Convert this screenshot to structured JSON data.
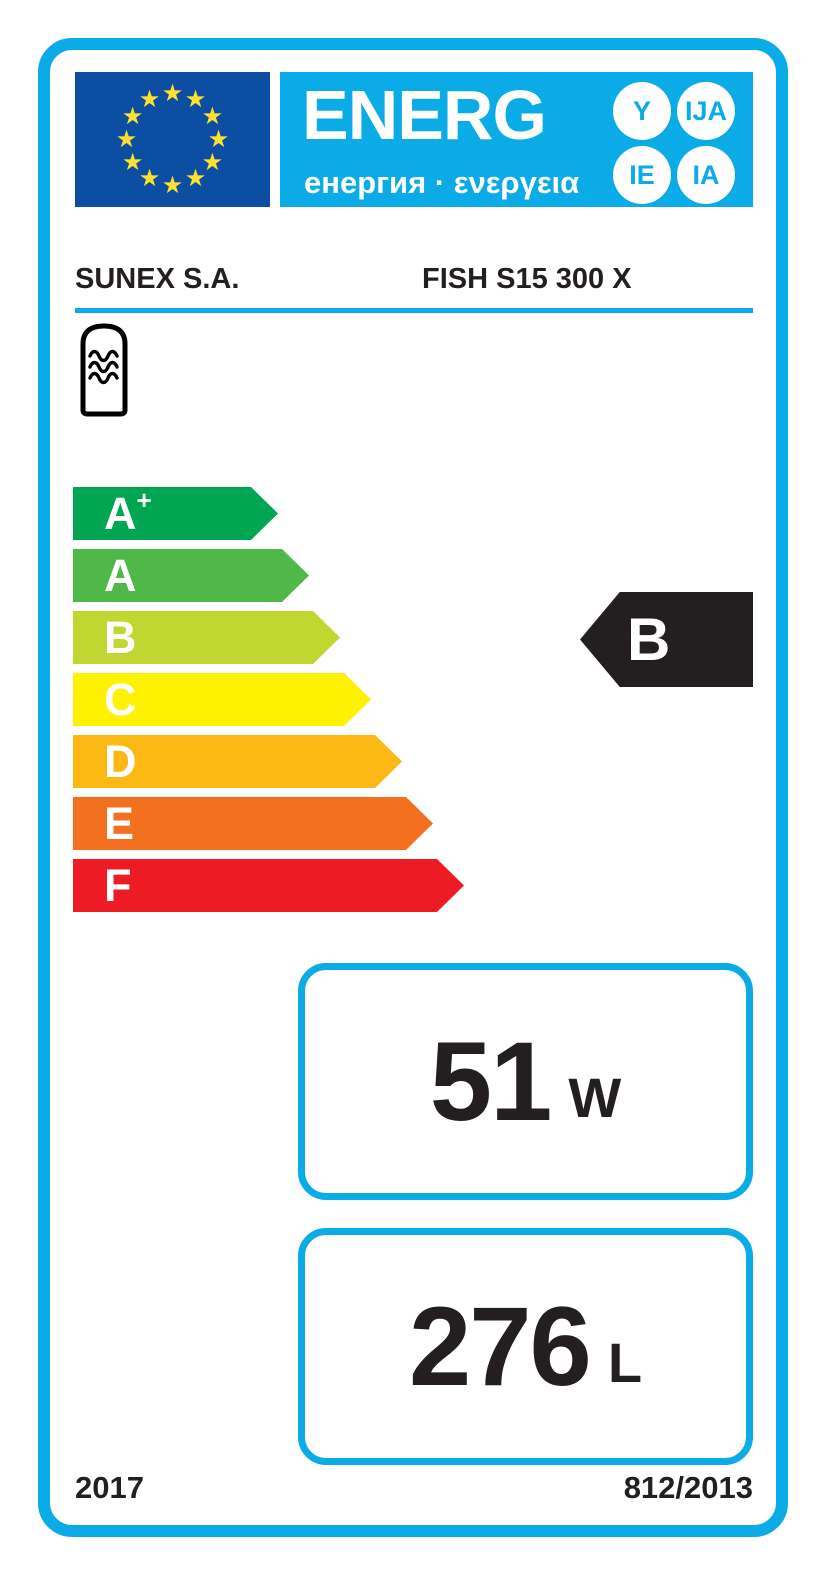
{
  "header": {
    "energ_word": "ENERG",
    "subtitle": "енергия · ενεργεια",
    "bubbles": [
      "Y",
      "IJA",
      "IE",
      "IA"
    ],
    "eu_flag": "eu-flag-12-stars"
  },
  "supplier": {
    "brand": "SUNEX S.A.",
    "model": "FISH S15 300 X"
  },
  "product_icon": "hot-water-storage-tank-icon",
  "rating_scale": [
    {
      "label": "A",
      "sup": "+",
      "color": "#00a651"
    },
    {
      "label": "A",
      "sup": "",
      "color": "#50b848"
    },
    {
      "label": "B",
      "sup": "",
      "color": "#bfd730"
    },
    {
      "label": "C",
      "sup": "",
      "color": "#fff200"
    },
    {
      "label": "D",
      "sup": "",
      "color": "#fdb913"
    },
    {
      "label": "E",
      "sup": "",
      "color": "#f37021"
    },
    {
      "label": "F",
      "sup": "",
      "color": "#ed1c24"
    }
  ],
  "rating": {
    "value": "B",
    "color": "#231f20"
  },
  "metrics": {
    "standing_loss": {
      "value": "51",
      "unit": "W"
    },
    "storage_volume": {
      "value": "276",
      "unit": "L"
    }
  },
  "footer": {
    "year": "2017",
    "regulation": "812/2013"
  },
  "colors": {
    "accent_cyan": "#0aabe6",
    "flag_blue": "#0b4ea2",
    "star_yellow": "#ffe02e",
    "ink_black": "#231f20"
  }
}
